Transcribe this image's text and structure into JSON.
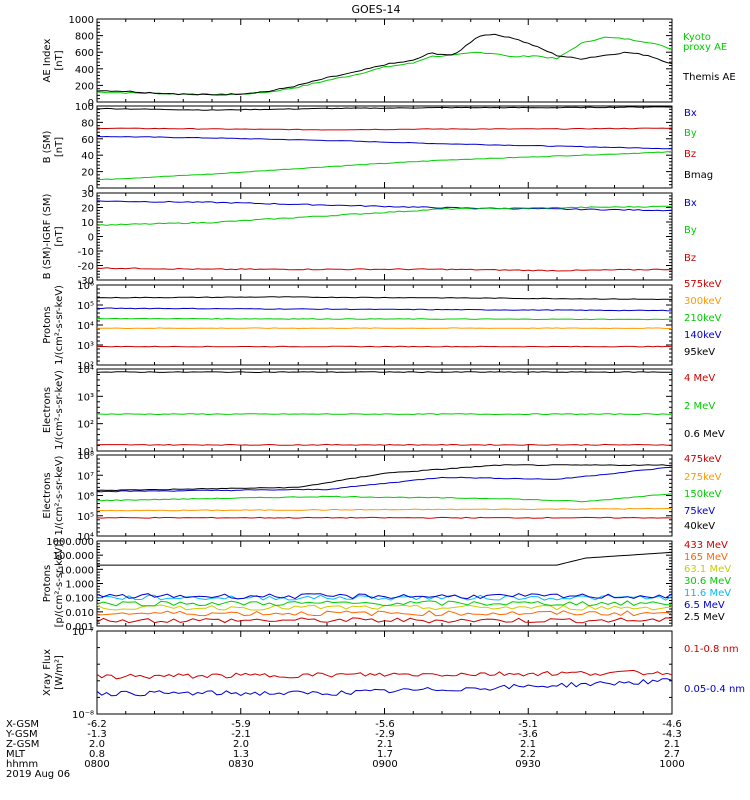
{
  "title": "GOES-14",
  "chart_data": [
    {
      "type": "line",
      "ylabel": "AE Index [nT]",
      "ylim": [
        0,
        1000
      ],
      "yticks": [
        "0",
        "200",
        "400",
        "600",
        "800",
        "1000"
      ],
      "series": [
        {
          "name": "Kyoto proxy AE",
          "color": "#00cc00",
          "values": [
            [
              0,
              120
            ],
            [
              0.05,
              110
            ],
            [
              0.1,
              105
            ],
            [
              0.15,
              95
            ],
            [
              0.2,
              90
            ],
            [
              0.25,
              95
            ],
            [
              0.3,
              120
            ],
            [
              0.35,
              180
            ],
            [
              0.4,
              260
            ],
            [
              0.45,
              330
            ],
            [
              0.5,
              420
            ],
            [
              0.55,
              470
            ],
            [
              0.58,
              550
            ],
            [
              0.62,
              560
            ],
            [
              0.66,
              600
            ],
            [
              0.7,
              580
            ],
            [
              0.72,
              540
            ],
            [
              0.76,
              560
            ],
            [
              0.8,
              520
            ],
            [
              0.84,
              700
            ],
            [
              0.88,
              780
            ],
            [
              0.92,
              760
            ],
            [
              0.96,
              720
            ],
            [
              1,
              640
            ]
          ]
        },
        {
          "name": "Themis AE",
          "color": "#000000",
          "values": [
            [
              0,
              140
            ],
            [
              0.05,
              130
            ],
            [
              0.1,
              110
            ],
            [
              0.15,
              95
            ],
            [
              0.2,
              85
            ],
            [
              0.25,
              100
            ],
            [
              0.3,
              130
            ],
            [
              0.35,
              200
            ],
            [
              0.4,
              290
            ],
            [
              0.45,
              360
            ],
            [
              0.5,
              450
            ],
            [
              0.55,
              500
            ],
            [
              0.58,
              590
            ],
            [
              0.62,
              560
            ],
            [
              0.66,
              780
            ],
            [
              0.68,
              820
            ],
            [
              0.72,
              780
            ],
            [
              0.76,
              680
            ],
            [
              0.8,
              560
            ],
            [
              0.84,
              520
            ],
            [
              0.88,
              560
            ],
            [
              0.92,
              600
            ],
            [
              0.96,
              560
            ],
            [
              1,
              460
            ]
          ]
        }
      ]
    },
    {
      "type": "line",
      "ylabel": "B (SM) [nT]",
      "ylim": [
        0,
        100
      ],
      "yticks": [
        "0",
        "20",
        "40",
        "60",
        "80",
        "100"
      ],
      "series": [
        {
          "name": "Bx",
          "color": "#0000cc",
          "values": [
            [
              0,
              63
            ],
            [
              0.2,
              61
            ],
            [
              0.4,
              58
            ],
            [
              0.6,
              54
            ],
            [
              0.8,
              51
            ],
            [
              1,
              48
            ]
          ]
        },
        {
          "name": "By",
          "color": "#00cc00",
          "values": [
            [
              0,
              10
            ],
            [
              0.2,
              17
            ],
            [
              0.4,
              26
            ],
            [
              0.6,
              34
            ],
            [
              0.8,
              39
            ],
            [
              1,
              44
            ]
          ]
        },
        {
          "name": "Bz",
          "color": "#cc0000",
          "values": [
            [
              0,
              73
            ],
            [
              0.2,
              72
            ],
            [
              0.4,
              71
            ],
            [
              0.6,
              72
            ],
            [
              0.8,
              72
            ],
            [
              1,
              73
            ]
          ]
        },
        {
          "name": "Bmag",
          "color": "#000000",
          "values": [
            [
              0,
              97
            ],
            [
              0.2,
              95
            ],
            [
              0.4,
              97
            ],
            [
              0.6,
              98
            ],
            [
              0.8,
              98
            ],
            [
              1,
              99
            ]
          ]
        }
      ]
    },
    {
      "type": "line",
      "ylabel": "B (SM)-IGRF (SM) [nT]",
      "ylim": [
        -35,
        30
      ],
      "yticks": [
        "-30",
        "-20",
        "-10",
        "0",
        "10",
        "20",
        "30"
      ],
      "series": [
        {
          "name": "Bx",
          "color": "#0000cc",
          "values": [
            [
              0,
              24
            ],
            [
              0.2,
              23
            ],
            [
              0.4,
              21
            ],
            [
              0.6,
              19
            ],
            [
              0.8,
              18
            ],
            [
              1,
              17
            ]
          ]
        },
        {
          "name": "By",
          "color": "#00cc00",
          "values": [
            [
              0,
              6
            ],
            [
              0.2,
              8
            ],
            [
              0.4,
              13
            ],
            [
              0.6,
              18
            ],
            [
              0.8,
              19
            ],
            [
              1,
              20
            ]
          ]
        },
        {
          "name": "Bz",
          "color": "#cc0000",
          "values": [
            [
              0,
              -26
            ],
            [
              0.2,
              -27
            ],
            [
              0.4,
              -27
            ],
            [
              0.6,
              -27
            ],
            [
              0.8,
              -28
            ],
            [
              1,
              -27
            ]
          ]
        }
      ]
    },
    {
      "type": "line",
      "ylabel": "Protons 1/(cm²-s-sr-keV)",
      "yscale": "log",
      "ylim": [
        1,
        6
      ],
      "yticks": [
        "10²",
        "10³",
        "10⁴",
        "10⁵",
        "10⁶"
      ],
      "series": [
        {
          "name": "575keV",
          "color": "#cc0000",
          "values": [
            [
              0,
              2.15
            ],
            [
              1,
              2.15
            ]
          ]
        },
        {
          "name": "300keV",
          "color": "#ff9900",
          "values": [
            [
              0,
              3.3
            ],
            [
              1,
              3.3
            ]
          ]
        },
        {
          "name": "210keV",
          "color": "#00cc00",
          "values": [
            [
              0,
              3.9
            ],
            [
              1,
              3.85
            ]
          ]
        },
        {
          "name": "140keV",
          "color": "#0000cc",
          "values": [
            [
              0,
              4.55
            ],
            [
              1,
              4.4
            ]
          ]
        },
        {
          "name": "95keV",
          "color": "#000000",
          "values": [
            [
              0,
              5.2
            ],
            [
              0.3,
              5.25
            ],
            [
              0.6,
              5.2
            ],
            [
              1,
              5.1
            ]
          ]
        }
      ]
    },
    {
      "type": "line",
      "ylabel": "Electrons 1/(cm²-s-sr-keV)",
      "yscale": "log",
      "ylim": [
        1,
        5
      ],
      "yticks": [
        "10¹",
        "10²",
        "10³",
        "10⁴"
      ],
      "series": [
        {
          "name": "4 MeV",
          "color": "#cc0000",
          "values": [
            [
              0,
              1.3
            ],
            [
              1,
              1.3
            ]
          ]
        },
        {
          "name": "2 MeV",
          "color": "#00cc00",
          "values": [
            [
              0,
              2.8
            ],
            [
              1,
              2.8
            ]
          ]
        },
        {
          "name": "0.6 MeV",
          "color": "#000000",
          "values": [
            [
              0,
              4.85
            ],
            [
              1,
              4.85
            ]
          ]
        }
      ]
    },
    {
      "type": "line",
      "ylabel": "Electrons 1/(cm²-s-sr-keV)",
      "yscale": "log",
      "ylim": [
        4,
        8
      ],
      "yticks": [
        "10⁴",
        "10⁵",
        "10⁶",
        "10⁷",
        "10⁸"
      ],
      "series": [
        {
          "name": "475keV",
          "color": "#cc0000",
          "values": [
            [
              0,
              4.9
            ],
            [
              1,
              4.9
            ]
          ]
        },
        {
          "name": "275keV",
          "color": "#ff9900",
          "values": [
            [
              0,
              5.25
            ],
            [
              1,
              5.35
            ]
          ]
        },
        {
          "name": "150keV",
          "color": "#00cc00",
          "values": [
            [
              0,
              5.75
            ],
            [
              0.4,
              5.95
            ],
            [
              0.7,
              5.85
            ],
            [
              0.85,
              5.7
            ],
            [
              1,
              6.1
            ]
          ]
        },
        {
          "name": "75keV",
          "color": "#0000cc",
          "values": [
            [
              0,
              6.2
            ],
            [
              0.4,
              6.3
            ],
            [
              0.6,
              6.9
            ],
            [
              0.8,
              6.8
            ],
            [
              1,
              7.4
            ]
          ]
        },
        {
          "name": "40keV",
          "color": "#000000",
          "values": [
            [
              0,
              6.25
            ],
            [
              0.35,
              6.4
            ],
            [
              0.5,
              7.1
            ],
            [
              0.7,
              7.5
            ],
            [
              1,
              7.5
            ]
          ]
        }
      ]
    },
    {
      "type": "line",
      "ylabel": "Protons [p/(cm²-s-sr-keV)]",
      "yscale": "log",
      "ylim": [
        -3,
        3
      ],
      "yticks": [
        "0.001",
        "0.010",
        "0.100",
        "1.000",
        "10.000",
        "100.000",
        "1000.000"
      ],
      "series": [
        {
          "name": "433 MeV",
          "color": "#cc0000",
          "values": [
            [
              0,
              -2.6
            ],
            [
              1,
              -2.6
            ]
          ]
        },
        {
          "name": "165 MeV",
          "color": "#ff6600",
          "values": [
            [
              0,
              -2.1
            ],
            [
              1,
              -2.1
            ]
          ]
        },
        {
          "name": "63.1 MeV",
          "color": "#cccc00",
          "values": [
            [
              0,
              -1.7
            ],
            [
              1,
              -1.7
            ]
          ]
        },
        {
          "name": "30.6 MeV",
          "color": "#00cc00",
          "values": [
            [
              0,
              -1.4
            ],
            [
              1,
              -1.4
            ]
          ]
        },
        {
          "name": "11.6 MeV",
          "color": "#00bbff",
          "values": [
            [
              0,
              -1.0
            ],
            [
              1,
              -1.0
            ]
          ]
        },
        {
          "name": "6.5 MeV",
          "color": "#0000cc",
          "values": [
            [
              0,
              -0.9
            ],
            [
              1,
              -0.9
            ]
          ]
        },
        {
          "name": "2.5 MeV",
          "color": "#000000",
          "values": [
            [
              0,
              1.3
            ],
            [
              0.8,
              1.3
            ],
            [
              0.85,
              1.8
            ],
            [
              1,
              2.2
            ]
          ]
        }
      ]
    },
    {
      "type": "line",
      "ylabel": "Xray Flux [W/m²]",
      "yscale": "log",
      "ylim": [
        -8,
        -7
      ],
      "yticks": [
        "10⁻⁸",
        "10⁻⁷"
      ],
      "series": [
        {
          "name": "0.1-0.8 nm",
          "color": "#cc0000",
          "values": [
            [
              0,
              -7.55
            ],
            [
              1,
              -7.5
            ]
          ]
        },
        {
          "name": "0.05-0.4 nm",
          "color": "#0000cc",
          "values": [
            [
              0,
              -7.75
            ],
            [
              0.4,
              -7.75
            ],
            [
              0.7,
              -7.68
            ],
            [
              1,
              -7.6
            ]
          ]
        }
      ]
    }
  ],
  "legends": [
    [
      {
        "label": "Kyoto",
        "color": "#00cc00"
      },
      {
        "label": "proxy AE",
        "color": "#00cc00"
      },
      {
        "label": "Themis AE",
        "color": "#000000"
      }
    ],
    [
      {
        "label": "Bx",
        "color": "#0000cc"
      },
      {
        "label": "By",
        "color": "#00cc00"
      },
      {
        "label": "Bz",
        "color": "#cc0000"
      },
      {
        "label": "Bmag",
        "color": "#000000"
      }
    ],
    [
      {
        "label": "Bx",
        "color": "#0000cc"
      },
      {
        "label": "By",
        "color": "#00cc00"
      },
      {
        "label": "Bz",
        "color": "#cc0000"
      }
    ],
    [
      {
        "label": "575keV",
        "color": "#cc0000"
      },
      {
        "label": "300keV",
        "color": "#ff9900"
      },
      {
        "label": "210keV",
        "color": "#00cc00"
      },
      {
        "label": "140keV",
        "color": "#0000cc"
      },
      {
        "label": "95keV",
        "color": "#000000"
      }
    ],
    [
      {
        "label": "4 MeV",
        "color": "#cc0000"
      },
      {
        "label": "2 MeV",
        "color": "#00cc00"
      },
      {
        "label": "0.6 MeV",
        "color": "#000000"
      }
    ],
    [
      {
        "label": "475keV",
        "color": "#cc0000"
      },
      {
        "label": "275keV",
        "color": "#ff9900"
      },
      {
        "label": "150keV",
        "color": "#00cc00"
      },
      {
        "label": "75keV",
        "color": "#0000cc"
      },
      {
        "label": "40keV",
        "color": "#000000"
      }
    ],
    [
      {
        "label": "433 MeV",
        "color": "#cc0000"
      },
      {
        "label": "165 MeV",
        "color": "#ff6600"
      },
      {
        "label": "63.1 MeV",
        "color": "#cccc00"
      },
      {
        "label": "30.6 MeV",
        "color": "#00cc00"
      },
      {
        "label": "11.6 MeV",
        "color": "#00bbff"
      },
      {
        "label": "6.5 MeV",
        "color": "#0000cc"
      },
      {
        "label": "2.5 MeV",
        "color": "#000000"
      }
    ],
    [
      {
        "label": "0.1-0.8 nm",
        "color": "#cc0000"
      },
      {
        "label": "0.05-0.4 nm",
        "color": "#0000cc"
      }
    ]
  ],
  "ylabels": [
    [
      "AE Index",
      "[nT]"
    ],
    [
      "B (SM)",
      "[nT]"
    ],
    [
      "B (SM)-IGRF (SM)",
      "[nT]"
    ],
    [
      "Protons",
      "1/(cm²-s-sr-keV)"
    ],
    [
      "Electrons",
      "1/(cm²-s-sr-keV)"
    ],
    [
      "Electrons",
      "1/(cm²-s-sr-keV)"
    ],
    [
      "Protons",
      "[p/(cm²-s-sr-keV)]"
    ],
    [
      "Xray Flux",
      "[W/m²]"
    ]
  ],
  "xaxis": {
    "row_labels": [
      "X-GSM",
      "Y-GSM",
      "Z-GSM",
      "MLT",
      "hhmm",
      "2019 Aug 06"
    ],
    "columns": [
      [
        "-6.2",
        "-1.3",
        "2.0",
        "0.8",
        "0800"
      ],
      [
        "-5.9",
        "-2.1",
        "2.0",
        "1.3",
        "0830"
      ],
      [
        "-5.6",
        "-2.9",
        "2.1",
        "1.7",
        "0900"
      ],
      [
        "-5.1",
        "-3.6",
        "2.1",
        "2.2",
        "0930"
      ],
      [
        "-4.6",
        "-4.3",
        "2.1",
        "2.7",
        "1000"
      ]
    ]
  }
}
